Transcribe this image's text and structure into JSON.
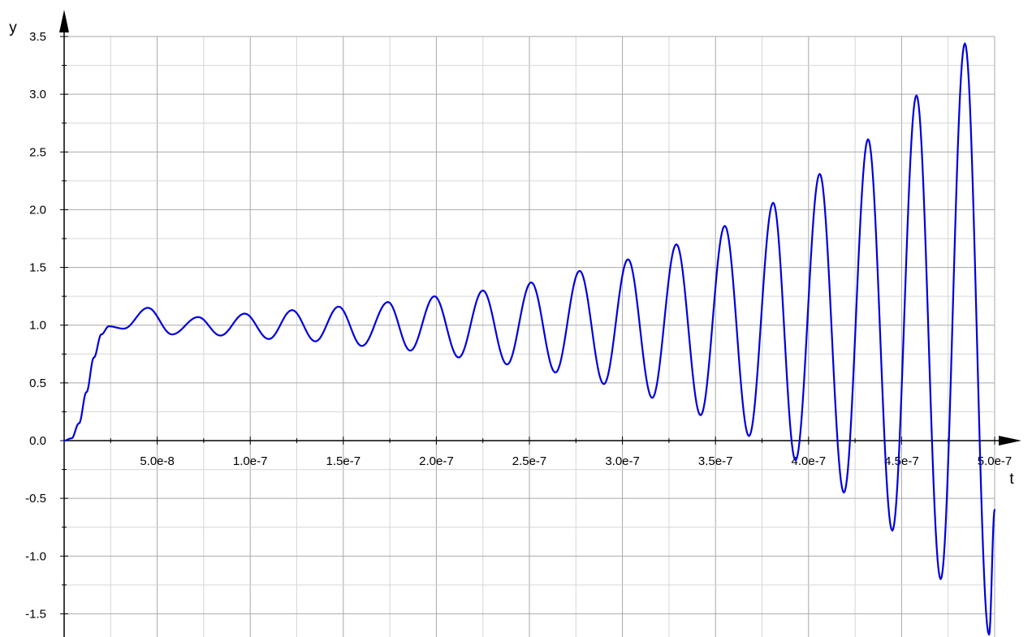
{
  "chart_data": {
    "type": "line",
    "title": "",
    "xlabel": "t",
    "ylabel": "y",
    "xlim": [
      0,
      5e-07
    ],
    "ylim": [
      -1.5,
      3.5
    ],
    "x_ticks": [
      {
        "value": 5e-08,
        "label": "5.0e-8"
      },
      {
        "value": 1e-07,
        "label": "1.0e-7"
      },
      {
        "value": 1.5e-07,
        "label": "1.5e-7"
      },
      {
        "value": 2e-07,
        "label": "2.0e-7"
      },
      {
        "value": 2.5e-07,
        "label": "2.5e-7"
      },
      {
        "value": 3e-07,
        "label": "3.0e-7"
      },
      {
        "value": 3.5e-07,
        "label": "3.5e-7"
      },
      {
        "value": 4e-07,
        "label": "4.0e-7"
      },
      {
        "value": 4.5e-07,
        "label": "4.5e-7"
      },
      {
        "value": 5e-07,
        "label": "5.0e-7"
      }
    ],
    "y_ticks": [
      {
        "value": 3.5,
        "label": "3.5"
      },
      {
        "value": 3.0,
        "label": "3.0"
      },
      {
        "value": 2.5,
        "label": "2.5"
      },
      {
        "value": 2.0,
        "label": "2.0"
      },
      {
        "value": 1.5,
        "label": "1.5"
      },
      {
        "value": 1.0,
        "label": "1.0"
      },
      {
        "value": 0.5,
        "label": "0.5"
      },
      {
        "value": 0.0,
        "label": "0.0"
      },
      {
        "value": -0.5,
        "label": "-0.5"
      },
      {
        "value": -1.0,
        "label": "-1.0"
      },
      {
        "value": -1.5,
        "label": "-1.5"
      }
    ],
    "grid": true,
    "line_color": "#0000dd",
    "series": [
      {
        "name": "",
        "points": [
          [
            0,
            0
          ],
          [
            4e-09,
            0.02
          ],
          [
            8e-09,
            0.15
          ],
          [
            1.2e-08,
            0.42
          ],
          [
            1.6e-08,
            0.72
          ],
          [
            2e-08,
            0.92
          ],
          [
            2.4e-08,
            0.99
          ],
          [
            3.2e-08,
            0.97
          ],
          [
            4.5e-08,
            1.15
          ],
          [
            5.8e-08,
            0.92
          ],
          [
            7.2e-08,
            1.07
          ],
          [
            8.4e-08,
            0.91
          ],
          [
            9.7e-08,
            1.1
          ],
          [
            1.1e-07,
            0.88
          ],
          [
            1.225e-07,
            1.13
          ],
          [
            1.35e-07,
            0.86
          ],
          [
            1.475e-07,
            1.16
          ],
          [
            1.6e-07,
            0.82
          ],
          [
            1.74e-07,
            1.2
          ],
          [
            1.86e-07,
            0.78
          ],
          [
            1.99e-07,
            1.25
          ],
          [
            2.12e-07,
            0.72
          ],
          [
            2.25e-07,
            1.3
          ],
          [
            2.38e-07,
            0.66
          ],
          [
            2.51e-07,
            1.37
          ],
          [
            2.64e-07,
            0.59
          ],
          [
            2.77e-07,
            1.47
          ],
          [
            2.9e-07,
            0.49
          ],
          [
            3.03e-07,
            1.57
          ],
          [
            3.16e-07,
            0.37
          ],
          [
            3.29e-07,
            1.7
          ],
          [
            3.42e-07,
            0.22
          ],
          [
            3.55e-07,
            1.86
          ],
          [
            3.68e-07,
            0.04
          ],
          [
            3.81e-07,
            2.06
          ],
          [
            3.93e-07,
            -0.17
          ],
          [
            4.06e-07,
            2.31
          ],
          [
            4.19e-07,
            -0.45
          ],
          [
            4.32e-07,
            2.61
          ],
          [
            4.45e-07,
            -0.78
          ],
          [
            4.58e-07,
            2.99
          ],
          [
            4.71e-07,
            -1.2
          ],
          [
            4.84e-07,
            3.44
          ],
          [
            4.97e-07,
            -1.68
          ],
          [
            5e-07,
            -0.6
          ]
        ]
      }
    ]
  }
}
